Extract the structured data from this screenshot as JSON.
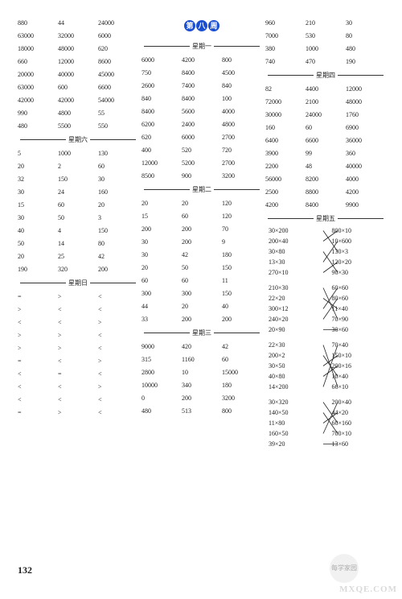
{
  "page_number": "132",
  "badge": {
    "chars": [
      "第",
      "八",
      "周"
    ]
  },
  "watermark": {
    "text": "MXQE.COM",
    "badge_top": "每学",
    "badge_bot": "家园"
  },
  "col1": {
    "block_a": [
      [
        "880",
        "44",
        "24000"
      ],
      [
        "63000",
        "32000",
        "6000"
      ],
      [
        "18000",
        "48000",
        "620"
      ],
      [
        "660",
        "12000",
        "8600"
      ],
      [
        "20000",
        "40000",
        "45000"
      ],
      [
        "63000",
        "600",
        "6600"
      ],
      [
        "42000",
        "42000",
        "54000"
      ],
      [
        "990",
        "4800",
        "55"
      ],
      [
        "480",
        "5500",
        "550"
      ]
    ],
    "div_sat": "星期六",
    "block_b": [
      [
        "5",
        "1000",
        "130"
      ],
      [
        "20",
        "2",
        "60"
      ],
      [
        "32",
        "150",
        "30"
      ],
      [
        "30",
        "24",
        "160"
      ],
      [
        "15",
        "60",
        "20"
      ],
      [
        "30",
        "50",
        "3"
      ],
      [
        "40",
        "4",
        "150"
      ],
      [
        "50",
        "14",
        "80"
      ],
      [
        "20",
        "25",
        "42"
      ],
      [
        "190",
        "320",
        "200"
      ]
    ],
    "div_sun": "星期日",
    "block_c": [
      [
        "=",
        ">",
        "<"
      ],
      [
        ">",
        "<",
        "<"
      ],
      [
        "<",
        "<",
        ">"
      ],
      [
        ">",
        ">",
        "<"
      ],
      [
        ">",
        ">",
        "<"
      ],
      [
        "=",
        "<",
        ">"
      ],
      [
        "<",
        "=",
        "<"
      ],
      [
        "<",
        "<",
        ">"
      ],
      [
        "<",
        "<",
        "<"
      ],
      [
        "=",
        ">",
        "<"
      ]
    ]
  },
  "col2": {
    "div_mon": "星期一",
    "block_a": [
      [
        "6000",
        "4200",
        "800"
      ],
      [
        "750",
        "8400",
        "4500"
      ],
      [
        "2600",
        "7400",
        "840"
      ],
      [
        "840",
        "8400",
        "100"
      ],
      [
        "8400",
        "5600",
        "4000"
      ],
      [
        "6200",
        "2400",
        "4800"
      ],
      [
        "620",
        "6000",
        "2700"
      ],
      [
        "400",
        "520",
        "720"
      ],
      [
        "12000",
        "5200",
        "2700"
      ],
      [
        "8500",
        "900",
        "3200"
      ]
    ],
    "div_tue": "星期二",
    "block_b": [
      [
        "20",
        "20",
        "120"
      ],
      [
        "15",
        "60",
        "120"
      ],
      [
        "200",
        "200",
        "70"
      ],
      [
        "30",
        "200",
        "9"
      ],
      [
        "30",
        "42",
        "180"
      ],
      [
        "20",
        "50",
        "150"
      ],
      [
        "60",
        "60",
        "11"
      ],
      [
        "300",
        "300",
        "150"
      ],
      [
        "44",
        "20",
        "40"
      ],
      [
        "33",
        "200",
        "200"
      ]
    ],
    "div_wed": "星期三",
    "block_c": [
      [
        "9000",
        "420",
        "42"
      ],
      [
        "315",
        "1160",
        "60"
      ],
      [
        "2800",
        "10",
        "15000"
      ],
      [
        "10000",
        "340",
        "180"
      ],
      [
        "0",
        "200",
        "3200"
      ],
      [
        "480",
        "513",
        "800"
      ]
    ]
  },
  "col3": {
    "block_a": [
      [
        "960",
        "210",
        "30"
      ],
      [
        "7000",
        "530",
        "80"
      ],
      [
        "380",
        "1000",
        "480"
      ],
      [
        "740",
        "470",
        "190"
      ]
    ],
    "div_thu": "星期四",
    "block_b": [
      [
        "82",
        "4400",
        "12000"
      ],
      [
        "72000",
        "2100",
        "48000"
      ],
      [
        "30000",
        "24000",
        "1760"
      ],
      [
        "160",
        "60",
        "6900"
      ],
      [
        "6400",
        "6600",
        "36000"
      ],
      [
        "3900",
        "99",
        "360"
      ],
      [
        "2200",
        "48",
        "40000"
      ],
      [
        "56000",
        "8200",
        "4000"
      ],
      [
        "2500",
        "8800",
        "4200"
      ],
      [
        "4200",
        "8400",
        "9900"
      ]
    ],
    "div_fri": "星期五",
    "match1": {
      "pairs": [
        [
          "30×200",
          "800×10"
        ],
        [
          "200×40",
          "10×600"
        ],
        [
          "30×80",
          "130×3"
        ],
        [
          "13×30",
          "120×20"
        ],
        [
          "270×10",
          "90×30"
        ]
      ],
      "lines": [
        [
          0,
          2
        ],
        [
          1,
          0
        ],
        [
          2,
          4
        ],
        [
          3,
          1
        ],
        [
          4,
          3
        ]
      ]
    },
    "match2": {
      "pairs": [
        [
          "210×30",
          "60×60"
        ],
        [
          "22×20",
          "80×60"
        ],
        [
          "300×12",
          "11×40"
        ],
        [
          "240×20",
          "70×90"
        ],
        [
          "20×90",
          "30×60"
        ]
      ],
      "lines": [
        [
          0,
          3
        ],
        [
          1,
          2
        ],
        [
          2,
          0
        ],
        [
          3,
          1
        ],
        [
          4,
          4
        ]
      ]
    },
    "match3": {
      "pairs": [
        [
          "22×30",
          "70×40"
        ],
        [
          "200×2",
          "150×10"
        ],
        [
          "30×50",
          "200×16"
        ],
        [
          "40×80",
          "10×40"
        ],
        [
          "14×200",
          "66×10"
        ]
      ],
      "lines": [
        [
          0,
          4
        ],
        [
          1,
          3
        ],
        [
          2,
          1
        ],
        [
          3,
          2
        ],
        [
          4,
          0
        ]
      ]
    },
    "match4": {
      "pairs": [
        [
          "30×320",
          "200×40"
        ],
        [
          "140×50",
          "44×20"
        ],
        [
          "11×80",
          "60×160"
        ],
        [
          "160×50",
          "700×10"
        ],
        [
          "39×20",
          "13×60"
        ]
      ],
      "lines": [
        [
          0,
          2
        ],
        [
          1,
          3
        ],
        [
          2,
          1
        ],
        [
          3,
          0
        ],
        [
          4,
          4
        ]
      ]
    }
  }
}
